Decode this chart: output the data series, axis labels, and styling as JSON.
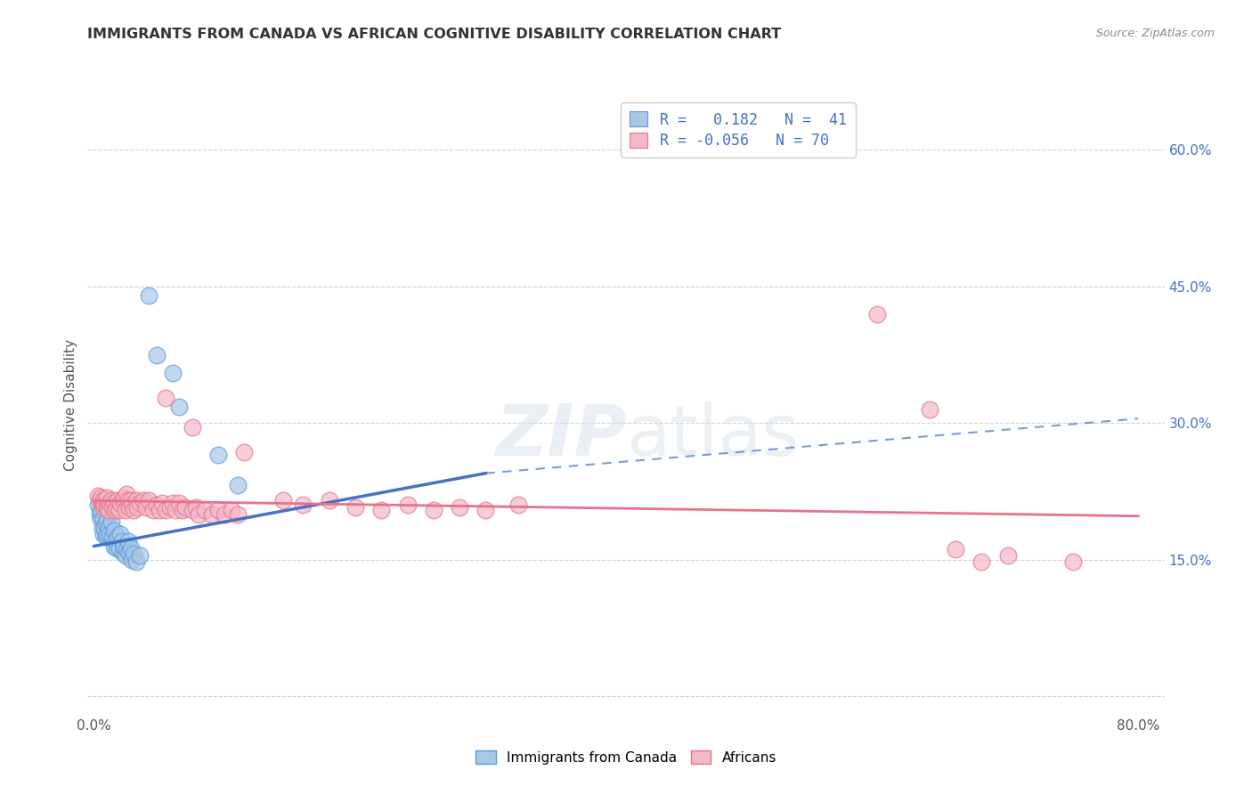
{
  "title": "IMMIGRANTS FROM CANADA VS AFRICAN COGNITIVE DISABILITY CORRELATION CHART",
  "source": "Source: ZipAtlas.com",
  "ylabel": "Cognitive Disability",
  "blue_color": "#A8C8E8",
  "pink_color": "#F4B8C8",
  "blue_edge_color": "#5B9BD5",
  "pink_edge_color": "#E8728A",
  "blue_line_color": "#4472C4",
  "pink_line_color": "#E8728A",
  "watermark_color": "#C8D8E8",
  "title_color": "#333333",
  "source_color": "#888888",
  "ytick_color": "#4472C4",
  "xtick_color": "#555555",
  "ylabel_color": "#555555",
  "blue_scatter": [
    [
      0.003,
      0.21
    ],
    [
      0.004,
      0.2
    ],
    [
      0.005,
      0.195
    ],
    [
      0.005,
      0.205
    ],
    [
      0.006,
      0.185
    ],
    [
      0.007,
      0.195
    ],
    [
      0.007,
      0.178
    ],
    [
      0.008,
      0.185
    ],
    [
      0.009,
      0.19
    ],
    [
      0.009,
      0.175
    ],
    [
      0.01,
      0.195
    ],
    [
      0.01,
      0.178
    ],
    [
      0.011,
      0.185
    ],
    [
      0.012,
      0.178
    ],
    [
      0.013,
      0.192
    ],
    [
      0.014,
      0.175
    ],
    [
      0.015,
      0.182
    ],
    [
      0.015,
      0.165
    ],
    [
      0.016,
      0.17
    ],
    [
      0.017,
      0.163
    ],
    [
      0.018,
      0.175
    ],
    [
      0.019,
      0.163
    ],
    [
      0.02,
      0.178
    ],
    [
      0.021,
      0.17
    ],
    [
      0.022,
      0.158
    ],
    [
      0.023,
      0.165
    ],
    [
      0.024,
      0.155
    ],
    [
      0.025,
      0.162
    ],
    [
      0.026,
      0.17
    ],
    [
      0.027,
      0.158
    ],
    [
      0.028,
      0.163
    ],
    [
      0.029,
      0.15
    ],
    [
      0.03,
      0.157
    ],
    [
      0.032,
      0.148
    ],
    [
      0.035,
      0.155
    ],
    [
      0.042,
      0.44
    ],
    [
      0.048,
      0.375
    ],
    [
      0.06,
      0.355
    ],
    [
      0.065,
      0.318
    ],
    [
      0.095,
      0.265
    ],
    [
      0.11,
      0.232
    ]
  ],
  "pink_scatter": [
    [
      0.003,
      0.22
    ],
    [
      0.004,
      0.215
    ],
    [
      0.005,
      0.218
    ],
    [
      0.006,
      0.212
    ],
    [
      0.007,
      0.208
    ],
    [
      0.007,
      0.215
    ],
    [
      0.008,
      0.21
    ],
    [
      0.009,
      0.215
    ],
    [
      0.01,
      0.208
    ],
    [
      0.01,
      0.218
    ],
    [
      0.011,
      0.205
    ],
    [
      0.012,
      0.212
    ],
    [
      0.013,
      0.215
    ],
    [
      0.014,
      0.208
    ],
    [
      0.015,
      0.212
    ],
    [
      0.016,
      0.205
    ],
    [
      0.017,
      0.208
    ],
    [
      0.018,
      0.215
    ],
    [
      0.019,
      0.205
    ],
    [
      0.02,
      0.212
    ],
    [
      0.022,
      0.215
    ],
    [
      0.023,
      0.218
    ],
    [
      0.024,
      0.205
    ],
    [
      0.025,
      0.222
    ],
    [
      0.026,
      0.215
    ],
    [
      0.027,
      0.208
    ],
    [
      0.028,
      0.215
    ],
    [
      0.029,
      0.21
    ],
    [
      0.03,
      0.205
    ],
    [
      0.032,
      0.215
    ],
    [
      0.033,
      0.208
    ],
    [
      0.035,
      0.212
    ],
    [
      0.038,
      0.215
    ],
    [
      0.04,
      0.208
    ],
    [
      0.042,
      0.215
    ],
    [
      0.045,
      0.205
    ],
    [
      0.048,
      0.21
    ],
    [
      0.05,
      0.205
    ],
    [
      0.052,
      0.212
    ],
    [
      0.055,
      0.205
    ],
    [
      0.058,
      0.208
    ],
    [
      0.06,
      0.212
    ],
    [
      0.062,
      0.205
    ],
    [
      0.065,
      0.212
    ],
    [
      0.068,
      0.205
    ],
    [
      0.07,
      0.208
    ],
    [
      0.075,
      0.205
    ],
    [
      0.078,
      0.208
    ],
    [
      0.08,
      0.2
    ],
    [
      0.085,
      0.205
    ],
    [
      0.09,
      0.2
    ],
    [
      0.095,
      0.205
    ],
    [
      0.1,
      0.2
    ],
    [
      0.105,
      0.205
    ],
    [
      0.11,
      0.2
    ],
    [
      0.055,
      0.328
    ],
    [
      0.075,
      0.295
    ],
    [
      0.115,
      0.268
    ],
    [
      0.145,
      0.215
    ],
    [
      0.16,
      0.21
    ],
    [
      0.18,
      0.215
    ],
    [
      0.2,
      0.208
    ],
    [
      0.22,
      0.205
    ],
    [
      0.24,
      0.21
    ],
    [
      0.26,
      0.205
    ],
    [
      0.28,
      0.208
    ],
    [
      0.3,
      0.205
    ],
    [
      0.325,
      0.21
    ],
    [
      0.6,
      0.42
    ],
    [
      0.64,
      0.315
    ],
    [
      0.66,
      0.162
    ],
    [
      0.68,
      0.148
    ],
    [
      0.7,
      0.155
    ],
    [
      0.75,
      0.148
    ]
  ],
  "blue_trendline_solid": {
    "x_start": 0.0,
    "y_start": 0.165,
    "x_end": 0.3,
    "y_end": 0.245
  },
  "blue_trendline_dashed": {
    "x_start": 0.3,
    "y_start": 0.245,
    "x_end": 0.8,
    "y_end": 0.305
  },
  "pink_trendline": {
    "x_start": 0.0,
    "y_start": 0.215,
    "x_end": 0.8,
    "y_end": 0.198
  },
  "xlim": [
    -0.005,
    0.82
  ],
  "ylim": [
    -0.02,
    0.66
  ],
  "x_ticks": [
    0.0,
    0.1,
    0.2,
    0.3,
    0.4,
    0.5,
    0.6,
    0.7,
    0.8
  ],
  "y_ticks": [
    0.0,
    0.15,
    0.3,
    0.45,
    0.6
  ]
}
